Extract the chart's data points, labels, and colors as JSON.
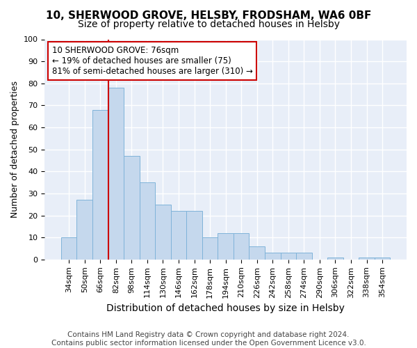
{
  "title1": "10, SHERWOOD GROVE, HELSBY, FRODSHAM, WA6 0BF",
  "title2": "Size of property relative to detached houses in Helsby",
  "xlabel": "Distribution of detached houses by size in Helsby",
  "ylabel": "Number of detached properties",
  "categories": [
    "34sqm",
    "50sqm",
    "66sqm",
    "82sqm",
    "98sqm",
    "114sqm",
    "130sqm",
    "146sqm",
    "162sqm",
    "178sqm",
    "194sqm",
    "210sqm",
    "226sqm",
    "242sqm",
    "258sqm",
    "274sqm",
    "290sqm",
    "306sqm",
    "322sqm",
    "338sqm",
    "354sqm"
  ],
  "values": [
    10,
    27,
    68,
    78,
    47,
    35,
    25,
    22,
    22,
    10,
    12,
    12,
    6,
    3,
    3,
    3,
    0,
    1,
    0,
    1,
    1
  ],
  "bar_color": "#c5d8ed",
  "bar_edge_color": "#7fb3d9",
  "annotation_box_color": "#ffffff",
  "annotation_box_edge": "#cc0000",
  "vline_color": "#cc0000",
  "vline_x": 2.5,
  "annotation_text": "10 SHERWOOD GROVE: 76sqm\n← 19% of detached houses are smaller (75)\n81% of semi-detached houses are larger (310) →",
  "footer_text": "Contains HM Land Registry data © Crown copyright and database right 2024.\nContains public sector information licensed under the Open Government Licence v3.0.",
  "ylim": [
    0,
    100
  ],
  "background_color": "#ffffff",
  "plot_bg_color": "#e8eef8",
  "grid_color": "#ffffff",
  "title_fontsize": 11,
  "subtitle_fontsize": 10,
  "tick_fontsize": 8,
  "footer_fontsize": 7.5,
  "ylabel_fontsize": 9,
  "xlabel_fontsize": 10
}
